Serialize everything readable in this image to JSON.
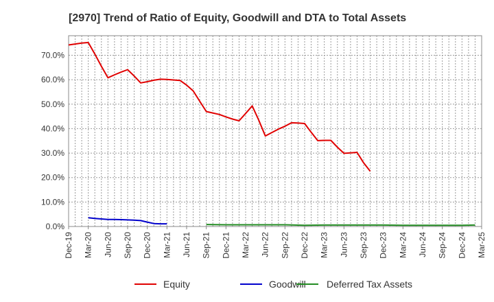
{
  "chart_data": {
    "type": "line",
    "title": "[2970]  Trend of Ratio of Equity, Goodwill and DTA to Total Assets",
    "xlabel": "",
    "ylabel": "",
    "x": [
      "Dec-19",
      "Mar-20",
      "Jun-20",
      "Sep-20",
      "Dec-20",
      "Mar-21",
      "Jun-21",
      "Sep-21",
      "Dec-21",
      "Mar-22",
      "Jun-22",
      "Sep-22",
      "Dec-22",
      "Mar-23",
      "Jun-23",
      "Sep-23",
      "Dec-23",
      "Mar-24",
      "Jun-24",
      "Sep-24",
      "Dec-24",
      "Mar-25"
    ],
    "xtick_labels": [
      "Dec-19",
      "Mar-20",
      "Jun-20",
      "Sep-20",
      "Dec-20",
      "Mar-21",
      "Jun-21",
      "Sep-21",
      "Dec-21",
      "Mar-22",
      "Jun-22",
      "Sep-22",
      "Dec-22",
      "Mar-23",
      "Jun-23",
      "Sep-23",
      "Dec-23",
      "Mar-24",
      "Jun-24",
      "Sep-24",
      "Dec-24",
      "Mar-25"
    ],
    "ylim": [
      0,
      78
    ],
    "yticks": [
      0,
      10,
      20,
      30,
      40,
      50,
      60,
      70
    ],
    "ytick_labels": [
      "0.0%",
      "10.0%",
      "20.0%",
      "30.0%",
      "40.0%",
      "50.0%",
      "60.0%",
      "70.0%"
    ],
    "grid": true,
    "legend_position": "bottom",
    "series": [
      {
        "name": "Equity",
        "color": "#e00000",
        "points": [
          [
            "Dec-19",
            74.2
          ],
          [
            "Jan-20",
            74.6
          ],
          [
            "Feb-20",
            75.0
          ],
          [
            "Mar-20",
            75.2
          ],
          [
            "Apr-20",
            70.5
          ],
          [
            "May-20",
            65.5
          ],
          [
            "Jun-20",
            60.8
          ],
          [
            "Jul-20",
            62.0
          ],
          [
            "Aug-20",
            63.1
          ],
          [
            "Sep-20",
            64.1
          ],
          [
            "Oct-20",
            61.5
          ],
          [
            "Nov-20",
            58.7
          ],
          [
            "Dec-20",
            59.2
          ],
          [
            "Jan-21",
            59.8
          ],
          [
            "Feb-21",
            60.2
          ],
          [
            "Mar-21",
            60.1
          ],
          [
            "Apr-21",
            59.9
          ],
          [
            "May-21",
            59.7
          ],
          [
            "Jun-21",
            57.8
          ],
          [
            "Jul-21",
            55.4
          ],
          [
            "Aug-21",
            51.2
          ],
          [
            "Sep-21",
            47.0
          ],
          [
            "Oct-21",
            46.4
          ],
          [
            "Nov-21",
            45.8
          ],
          [
            "Dec-21",
            44.8
          ],
          [
            "Jan-22",
            43.9
          ],
          [
            "Feb-22",
            43.2
          ],
          [
            "Mar-22",
            46.2
          ],
          [
            "Apr-22",
            49.3
          ],
          [
            "May-22",
            43.5
          ],
          [
            "Jun-22",
            37.0
          ],
          [
            "Jul-22",
            38.4
          ],
          [
            "Aug-22",
            39.8
          ],
          [
            "Sep-22",
            41.0
          ],
          [
            "Oct-22",
            42.4
          ],
          [
            "Nov-22",
            42.3
          ],
          [
            "Dec-22",
            42.1
          ],
          [
            "Jan-23",
            38.5
          ],
          [
            "Feb-23",
            35.1
          ],
          [
            "Mar-23",
            35.2
          ],
          [
            "Apr-23",
            35.2
          ],
          [
            "May-23",
            32.4
          ],
          [
            "Jun-23",
            29.9
          ],
          [
            "Jul-23",
            30.1
          ],
          [
            "Aug-23",
            30.3
          ],
          [
            "Sep-23",
            26.0
          ],
          [
            "Oct-23",
            22.6
          ]
        ]
      },
      {
        "name": "Goodwill",
        "color": "#0000cc",
        "points": [
          [
            "Mar-20",
            3.6
          ],
          [
            "Apr-20",
            3.3
          ],
          [
            "May-20",
            3.1
          ],
          [
            "Jun-20",
            2.9
          ],
          [
            "Jul-20",
            2.9
          ],
          [
            "Aug-20",
            2.8
          ],
          [
            "Sep-20",
            2.7
          ],
          [
            "Oct-20",
            2.6
          ],
          [
            "Nov-20",
            2.4
          ],
          [
            "Dec-20",
            1.8
          ],
          [
            "Jan-21",
            1.2
          ],
          [
            "Feb-21",
            1.1
          ],
          [
            "Mar-21",
            1.1
          ]
        ]
      },
      {
        "name": "Deferred Tax Assets",
        "color": "#228b22",
        "points": [
          [
            "Sep-21",
            0.8
          ],
          [
            "Dec-21",
            0.7
          ],
          [
            "Mar-22",
            0.7
          ],
          [
            "Jun-22",
            0.7
          ],
          [
            "Sep-22",
            0.7
          ],
          [
            "Dec-22",
            0.5
          ],
          [
            "Mar-23",
            0.6
          ],
          [
            "Jun-23",
            0.6
          ],
          [
            "Sep-23",
            0.6
          ],
          [
            "Dec-23",
            0.6
          ],
          [
            "Mar-24",
            0.5
          ],
          [
            "Jun-24",
            0.5
          ],
          [
            "Sep-24",
            0.5
          ],
          [
            "Dec-24",
            0.5
          ],
          [
            "Feb-25",
            0.6
          ]
        ]
      }
    ]
  }
}
